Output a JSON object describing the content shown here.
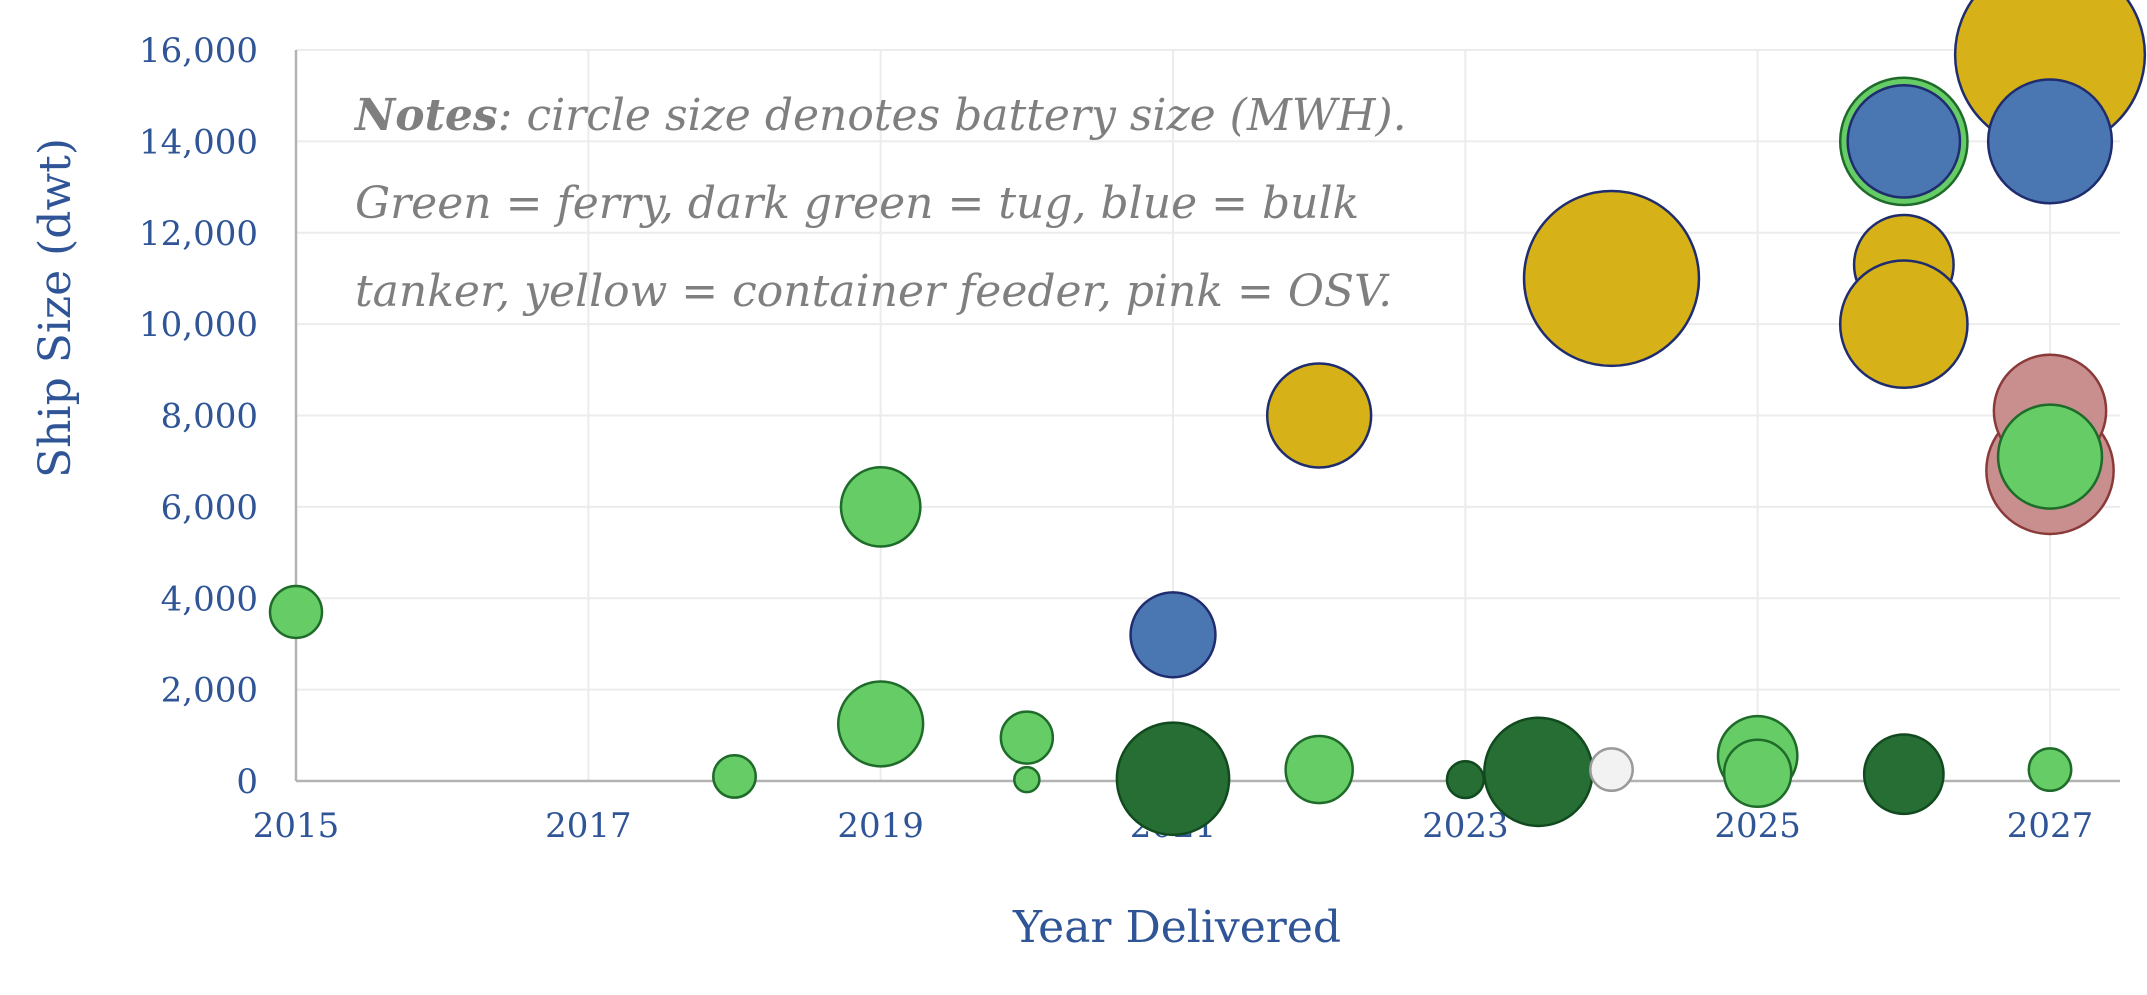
{
  "chart_data": {
    "type": "scatter",
    "xlabel": "Year Delivered",
    "ylabel": "Ship Size (dwt)",
    "xlim": [
      2015,
      2027
    ],
    "ylim": [
      0,
      16000
    ],
    "x_ticks": [
      2015,
      2017,
      2019,
      2021,
      2023,
      2025,
      2027
    ],
    "y_ticks": [
      0,
      2000,
      4000,
      6000,
      8000,
      10000,
      12000,
      14000,
      16000
    ],
    "x_tick_labels": [
      "2015",
      "2017",
      "2019",
      "2021",
      "2023",
      "2025",
      "2027"
    ],
    "y_tick_labels": [
      "0",
      "2,000",
      "4,000",
      "6,000",
      "8,000",
      "10,000",
      "12,000",
      "14,000",
      "16,000"
    ],
    "grid": true,
    "size_encoding": "battery size (MWH)",
    "notes": {
      "bold": "Notes",
      "line1_rest": ": circle size denotes battery size (MWH).",
      "line2": "Green = ferry, dark green = tug, blue = bulk",
      "line3": "tanker, yellow = container feeder, pink = OSV."
    },
    "colors": {
      "ferry": "#66cc66",
      "tug": "#266e34",
      "bulk": "#4a76b2",
      "container": "#d6b218",
      "osv": "#c98f8f",
      "unknown": "#f2f2f2"
    },
    "points": [
      {
        "x": 2027.0,
        "y": 6800,
        "size": 18,
        "category": "osv"
      },
      {
        "x": 2027.0,
        "y": 15900,
        "size": 40,
        "category": "container"
      },
      {
        "x": 2026.0,
        "y": 14000,
        "size": 18,
        "category": "ferry"
      },
      {
        "x": 2024.0,
        "y": 11000,
        "size": 34,
        "category": "container"
      },
      {
        "x": 2015.0,
        "y": 3700,
        "size": 3,
        "category": "ferry"
      },
      {
        "x": 2018.0,
        "y": 100,
        "size": 2,
        "category": "ferry"
      },
      {
        "x": 2019.0,
        "y": 6000,
        "size": 7,
        "category": "ferry"
      },
      {
        "x": 2019.0,
        "y": 1250,
        "size": 8,
        "category": "ferry"
      },
      {
        "x": 2020.0,
        "y": 950,
        "size": 3,
        "category": "ferry"
      },
      {
        "x": 2020.0,
        "y": 30,
        "size": 0.7,
        "category": "ferry"
      },
      {
        "x": 2021.0,
        "y": 3200,
        "size": 8,
        "category": "bulk"
      },
      {
        "x": 2021.0,
        "y": 50,
        "size": 14,
        "category": "tug"
      },
      {
        "x": 2022.0,
        "y": 8000,
        "size": 12,
        "category": "container"
      },
      {
        "x": 2022.0,
        "y": 250,
        "size": 5,
        "category": "ferry"
      },
      {
        "x": 2023.0,
        "y": 30,
        "size": 1.5,
        "category": "tug"
      },
      {
        "x": 2023.5,
        "y": 200,
        "size": 13,
        "category": "tug"
      },
      {
        "x": 2024.0,
        "y": 250,
        "size": 2,
        "category": "unknown"
      },
      {
        "x": 2025.0,
        "y": 550,
        "size": 7,
        "category": "ferry"
      },
      {
        "x": 2025.0,
        "y": 170,
        "size": 5,
        "category": "ferry"
      },
      {
        "x": 2026.0,
        "y": 14000,
        "size": 14,
        "category": "bulk"
      },
      {
        "x": 2026.0,
        "y": 11300,
        "size": 11,
        "category": "container"
      },
      {
        "x": 2026.0,
        "y": 10000,
        "size": 18,
        "category": "container"
      },
      {
        "x": 2026.0,
        "y": 150,
        "size": 7,
        "category": "tug"
      },
      {
        "x": 2027.0,
        "y": 14000,
        "size": 17,
        "category": "bulk"
      },
      {
        "x": 2027.0,
        "y": 8100,
        "size": 14,
        "category": "osv"
      },
      {
        "x": 2027.0,
        "y": 7100,
        "size": 12,
        "category": "ferry"
      },
      {
        "x": 2027.0,
        "y": 250,
        "size": 2,
        "category": "ferry"
      }
    ]
  }
}
